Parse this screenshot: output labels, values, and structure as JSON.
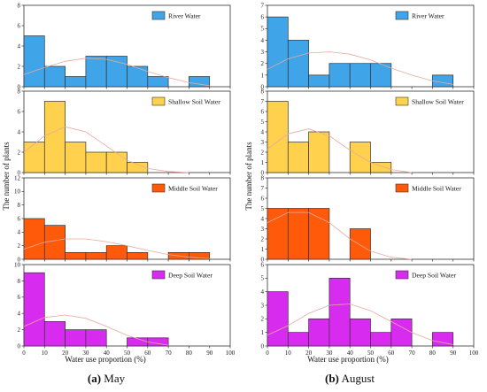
{
  "xlabel": "Water use proportion (%)",
  "ylabel": "The number of plants",
  "x_ticks": [
    "0",
    "10",
    "20",
    "30",
    "40",
    "50",
    "60",
    "70",
    "80",
    "90",
    "100"
  ],
  "captions": [
    {
      "tag": "(a)",
      "text": "May"
    },
    {
      "tag": "(b)",
      "text": "August"
    }
  ],
  "colors": {
    "River Water": "#3fa4e8",
    "Shallow Soil Water": "#ffd14d",
    "Middle Soil Water": "#ff5a0a",
    "Deep Soil Water": "#d72cf0"
  },
  "chart_data": [
    {
      "type": "bar",
      "column": "May",
      "series": "River Water",
      "bins": [
        0,
        10,
        20,
        30,
        40,
        50,
        60,
        70,
        80,
        90
      ],
      "values": [
        5,
        2,
        1,
        3,
        3,
        2,
        1,
        0,
        1,
        0
      ],
      "ylim": [
        0,
        8
      ],
      "yticks": [
        "0",
        "2",
        "4",
        "6",
        "8"
      ],
      "curve": [
        [
          0,
          1.2
        ],
        [
          10,
          1.9
        ],
        [
          20,
          2.5
        ],
        [
          30,
          2.8
        ],
        [
          40,
          2.7
        ],
        [
          50,
          2.2
        ],
        [
          60,
          1.5
        ],
        [
          70,
          0.9
        ],
        [
          80,
          0.4
        ],
        [
          90,
          0.1
        ]
      ]
    },
    {
      "type": "bar",
      "column": "May",
      "series": "Shallow Soil Water",
      "bins": [
        0,
        10,
        20,
        30,
        40,
        50,
        60,
        70,
        80,
        90
      ],
      "values": [
        3,
        7,
        3,
        2,
        2,
        1,
        0,
        0,
        0,
        0
      ],
      "ylim": [
        0,
        8
      ],
      "yticks": [
        "0",
        "2",
        "4",
        "6",
        "8"
      ],
      "curve": [
        [
          0,
          2.0
        ],
        [
          10,
          3.6
        ],
        [
          20,
          4.5
        ],
        [
          30,
          4.0
        ],
        [
          40,
          2.6
        ],
        [
          50,
          1.2
        ],
        [
          60,
          0.4
        ],
        [
          70,
          0.1
        ],
        [
          80,
          0
        ]
      ]
    },
    {
      "type": "bar",
      "column": "May",
      "series": "Middle Soil Water",
      "bins": [
        0,
        10,
        20,
        30,
        40,
        50,
        60,
        70,
        80,
        90
      ],
      "values": [
        6,
        5,
        1,
        1,
        2,
        1,
        0,
        1,
        1,
        0
      ],
      "ylim": [
        0,
        12
      ],
      "yticks": [
        "0",
        "2",
        "4",
        "6",
        "8",
        "10",
        "12"
      ],
      "curve": [
        [
          0,
          1.5
        ],
        [
          10,
          2.5
        ],
        [
          20,
          3.0
        ],
        [
          30,
          3.0
        ],
        [
          40,
          2.6
        ],
        [
          50,
          2.0
        ],
        [
          60,
          1.3
        ],
        [
          70,
          0.7
        ],
        [
          80,
          0.3
        ],
        [
          90,
          0.1
        ]
      ]
    },
    {
      "type": "bar",
      "column": "May",
      "series": "Deep Soil Water",
      "bins": [
        0,
        10,
        20,
        30,
        40,
        50,
        60,
        70,
        80,
        90
      ],
      "values": [
        9,
        3,
        2,
        2,
        0,
        1,
        1,
        0,
        0,
        0
      ],
      "ylim": [
        0,
        10
      ],
      "yticks": [
        "0",
        "2",
        "4",
        "6",
        "8",
        "10"
      ],
      "curve": [
        [
          0,
          2.4
        ],
        [
          10,
          3.5
        ],
        [
          20,
          3.8
        ],
        [
          30,
          3.4
        ],
        [
          40,
          2.4
        ],
        [
          50,
          1.3
        ],
        [
          60,
          0.5
        ],
        [
          70,
          0.1
        ]
      ]
    },
    {
      "type": "bar",
      "column": "August",
      "series": "River Water",
      "bins": [
        0,
        10,
        20,
        30,
        40,
        50,
        60,
        70,
        80,
        90
      ],
      "values": [
        6,
        4,
        1,
        2,
        2,
        2,
        0,
        0,
        1,
        0
      ],
      "ylim": [
        0,
        7
      ],
      "yticks": [
        "0",
        "1",
        "2",
        "3",
        "4",
        "5",
        "6",
        "7"
      ],
      "curve": [
        [
          0,
          1.5
        ],
        [
          10,
          2.4
        ],
        [
          20,
          2.9
        ],
        [
          30,
          3.0
        ],
        [
          40,
          2.8
        ],
        [
          50,
          2.3
        ],
        [
          60,
          1.6
        ],
        [
          70,
          1.0
        ],
        [
          80,
          0.5
        ],
        [
          90,
          0.2
        ]
      ]
    },
    {
      "type": "bar",
      "column": "August",
      "series": "Shallow Soil Water",
      "bins": [
        0,
        10,
        20,
        30,
        40,
        50,
        60,
        70,
        80,
        90
      ],
      "values": [
        7,
        3,
        4,
        0,
        3,
        1,
        0,
        0,
        0,
        0
      ],
      "ylim": [
        0,
        8
      ],
      "yticks": [
        "0",
        "1",
        "2",
        "3",
        "4",
        "5",
        "6",
        "7",
        "8"
      ],
      "curve": [
        [
          0,
          2.3
        ],
        [
          10,
          3.8
        ],
        [
          20,
          4.3
        ],
        [
          30,
          3.6
        ],
        [
          40,
          2.2
        ],
        [
          50,
          1.0
        ],
        [
          60,
          0.3
        ],
        [
          70,
          0
        ]
      ]
    },
    {
      "type": "bar",
      "column": "August",
      "series": "Middle Soil Water",
      "bins": [
        0,
        10,
        20,
        30,
        40,
        50,
        60,
        70,
        80,
        90
      ],
      "values": [
        5,
        5,
        5,
        0,
        3,
        0,
        0,
        0,
        0,
        0
      ],
      "ylim": [
        0,
        8
      ],
      "yticks": [
        "0",
        "1",
        "2",
        "3",
        "4",
        "5",
        "6",
        "7",
        "8"
      ],
      "curve": [
        [
          0,
          3.6
        ],
        [
          10,
          4.6
        ],
        [
          20,
          4.6
        ],
        [
          30,
          3.6
        ],
        [
          40,
          2.0
        ],
        [
          50,
          0.8
        ],
        [
          60,
          0.2
        ],
        [
          70,
          0
        ]
      ]
    },
    {
      "type": "bar",
      "column": "August",
      "series": "Deep Soil Water",
      "bins": [
        0,
        10,
        20,
        30,
        40,
        50,
        60,
        70,
        80,
        90
      ],
      "values": [
        4,
        1,
        2,
        5,
        2,
        1,
        2,
        0,
        1,
        0
      ],
      "ylim": [
        0,
        6
      ],
      "yticks": [
        "0",
        "1",
        "2",
        "3",
        "4",
        "5",
        "6"
      ],
      "curve": [
        [
          0,
          0.8
        ],
        [
          10,
          1.5
        ],
        [
          20,
          2.4
        ],
        [
          30,
          3.0
        ],
        [
          40,
          3.1
        ],
        [
          50,
          2.6
        ],
        [
          60,
          1.8
        ],
        [
          70,
          1.0
        ],
        [
          80,
          0.4
        ],
        [
          90,
          0.1
        ]
      ]
    }
  ]
}
